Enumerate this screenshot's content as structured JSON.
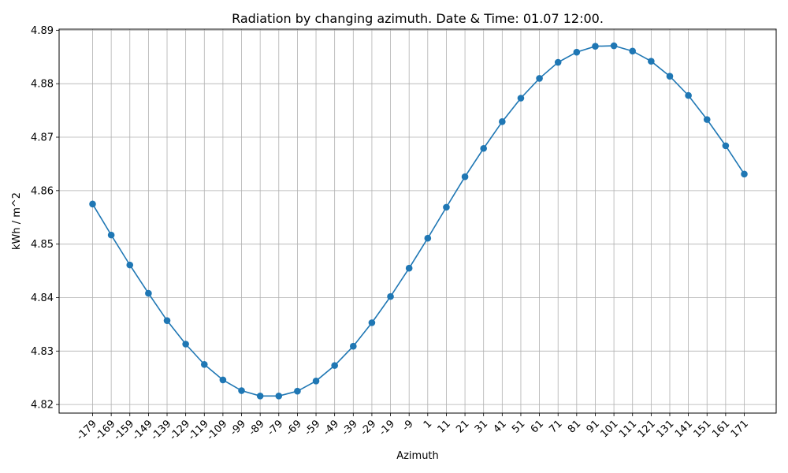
{
  "chart_data": {
    "type": "line",
    "title": "Radiation by changing azimuth. Date & Time: 01.07 12:00.",
    "xlabel": "Azimuth",
    "ylabel": "kWh / m^2",
    "categories": [
      "-179",
      "-169",
      "-159",
      "-149",
      "-139",
      "-129",
      "-119",
      "-109",
      "-99",
      "-89",
      "-79",
      "-69",
      "-59",
      "-49",
      "-39",
      "-29",
      "-19",
      "-9",
      "1",
      "11",
      "21",
      "31",
      "41",
      "51",
      "61",
      "71",
      "81",
      "91",
      "101",
      "111",
      "121",
      "131",
      "141",
      "151",
      "161",
      "171"
    ],
    "series": [
      {
        "values": [
          4.8575,
          4.8517,
          4.8461,
          4.8408,
          4.8357,
          4.8313,
          4.8275,
          4.8246,
          4.8226,
          4.8216,
          4.8216,
          4.8225,
          4.8244,
          4.8273,
          4.8309,
          4.8353,
          4.8402,
          4.8455,
          4.8511,
          4.8569,
          4.8626,
          4.8679,
          4.8729,
          4.8773,
          4.881,
          4.884,
          4.8859,
          4.887,
          4.8871,
          4.8861,
          4.8842,
          4.8814,
          4.8778,
          4.8733,
          4.8684,
          4.8631
        ],
        "color": "#1f77b4",
        "marker": "circle"
      }
    ],
    "ylim": [
      4.8184,
      4.8902
    ],
    "yticks": [
      "4.82",
      "4.83",
      "4.84",
      "4.85",
      "4.86",
      "4.87",
      "4.88",
      "4.89"
    ],
    "xtick_rotation": "45",
    "grid": true,
    "legend": "none"
  }
}
